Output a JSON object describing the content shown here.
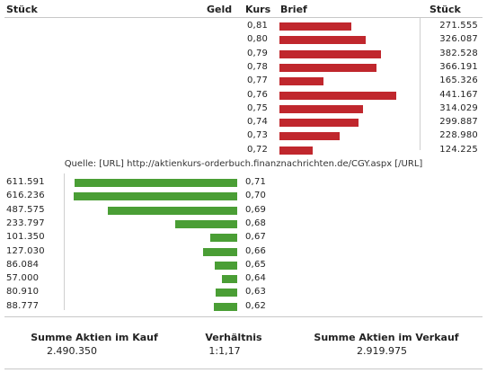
{
  "header": {
    "stueck_left": "Stück",
    "geld": "Geld",
    "kurs": "Kurs",
    "brief": "Brief",
    "stueck_right": "Stück"
  },
  "source": "Quelle: [URL] http://aktienkurs-orderbuch.finanznachrichten.de/CGY.aspx [/URL]",
  "summary": {
    "kauf_label": "Summe Aktien im Kauf",
    "kauf_value": "2.490.350",
    "ratio_label": "Verhältnis",
    "ratio_value": "1:1,17",
    "verkauf_label": "Summe Aktien im Verkauf",
    "verkauf_value": "2.919.975"
  },
  "colors": {
    "ask_bar": "#c0272d",
    "bid_bar": "#4a9e35"
  },
  "chart_data": [
    {
      "type": "bar",
      "name": "Brief",
      "orientation": "horizontal",
      "categories": [
        "0,81",
        "0,80",
        "0,79",
        "0,78",
        "0,77",
        "0,76",
        "0,75",
        "0,74",
        "0,73",
        "0,72"
      ],
      "values": [
        271555,
        326087,
        382528,
        366191,
        165326,
        441167,
        314029,
        299887,
        228980,
        124225
      ],
      "value_labels": [
        "271.555",
        "326.087",
        "382.528",
        "366.191",
        "165.326",
        "441.167",
        "314.029",
        "299.887",
        "228.980",
        "124.225"
      ],
      "color": "#c0272d"
    },
    {
      "type": "bar",
      "name": "Geld",
      "orientation": "horizontal",
      "categories": [
        "0,71",
        "0,70",
        "0,69",
        "0,68",
        "0,67",
        "0,66",
        "0,65",
        "0,64",
        "0,63",
        "0,62"
      ],
      "values": [
        611591,
        616236,
        487575,
        233797,
        101350,
        127030,
        86084,
        57000,
        80910,
        88777
      ],
      "value_labels": [
        "611.591",
        "616.236",
        "487.575",
        "233.797",
        "101.350",
        "127.030",
        "86.084",
        "57.000",
        "80.910",
        "88.777"
      ],
      "color": "#4a9e35"
    }
  ]
}
